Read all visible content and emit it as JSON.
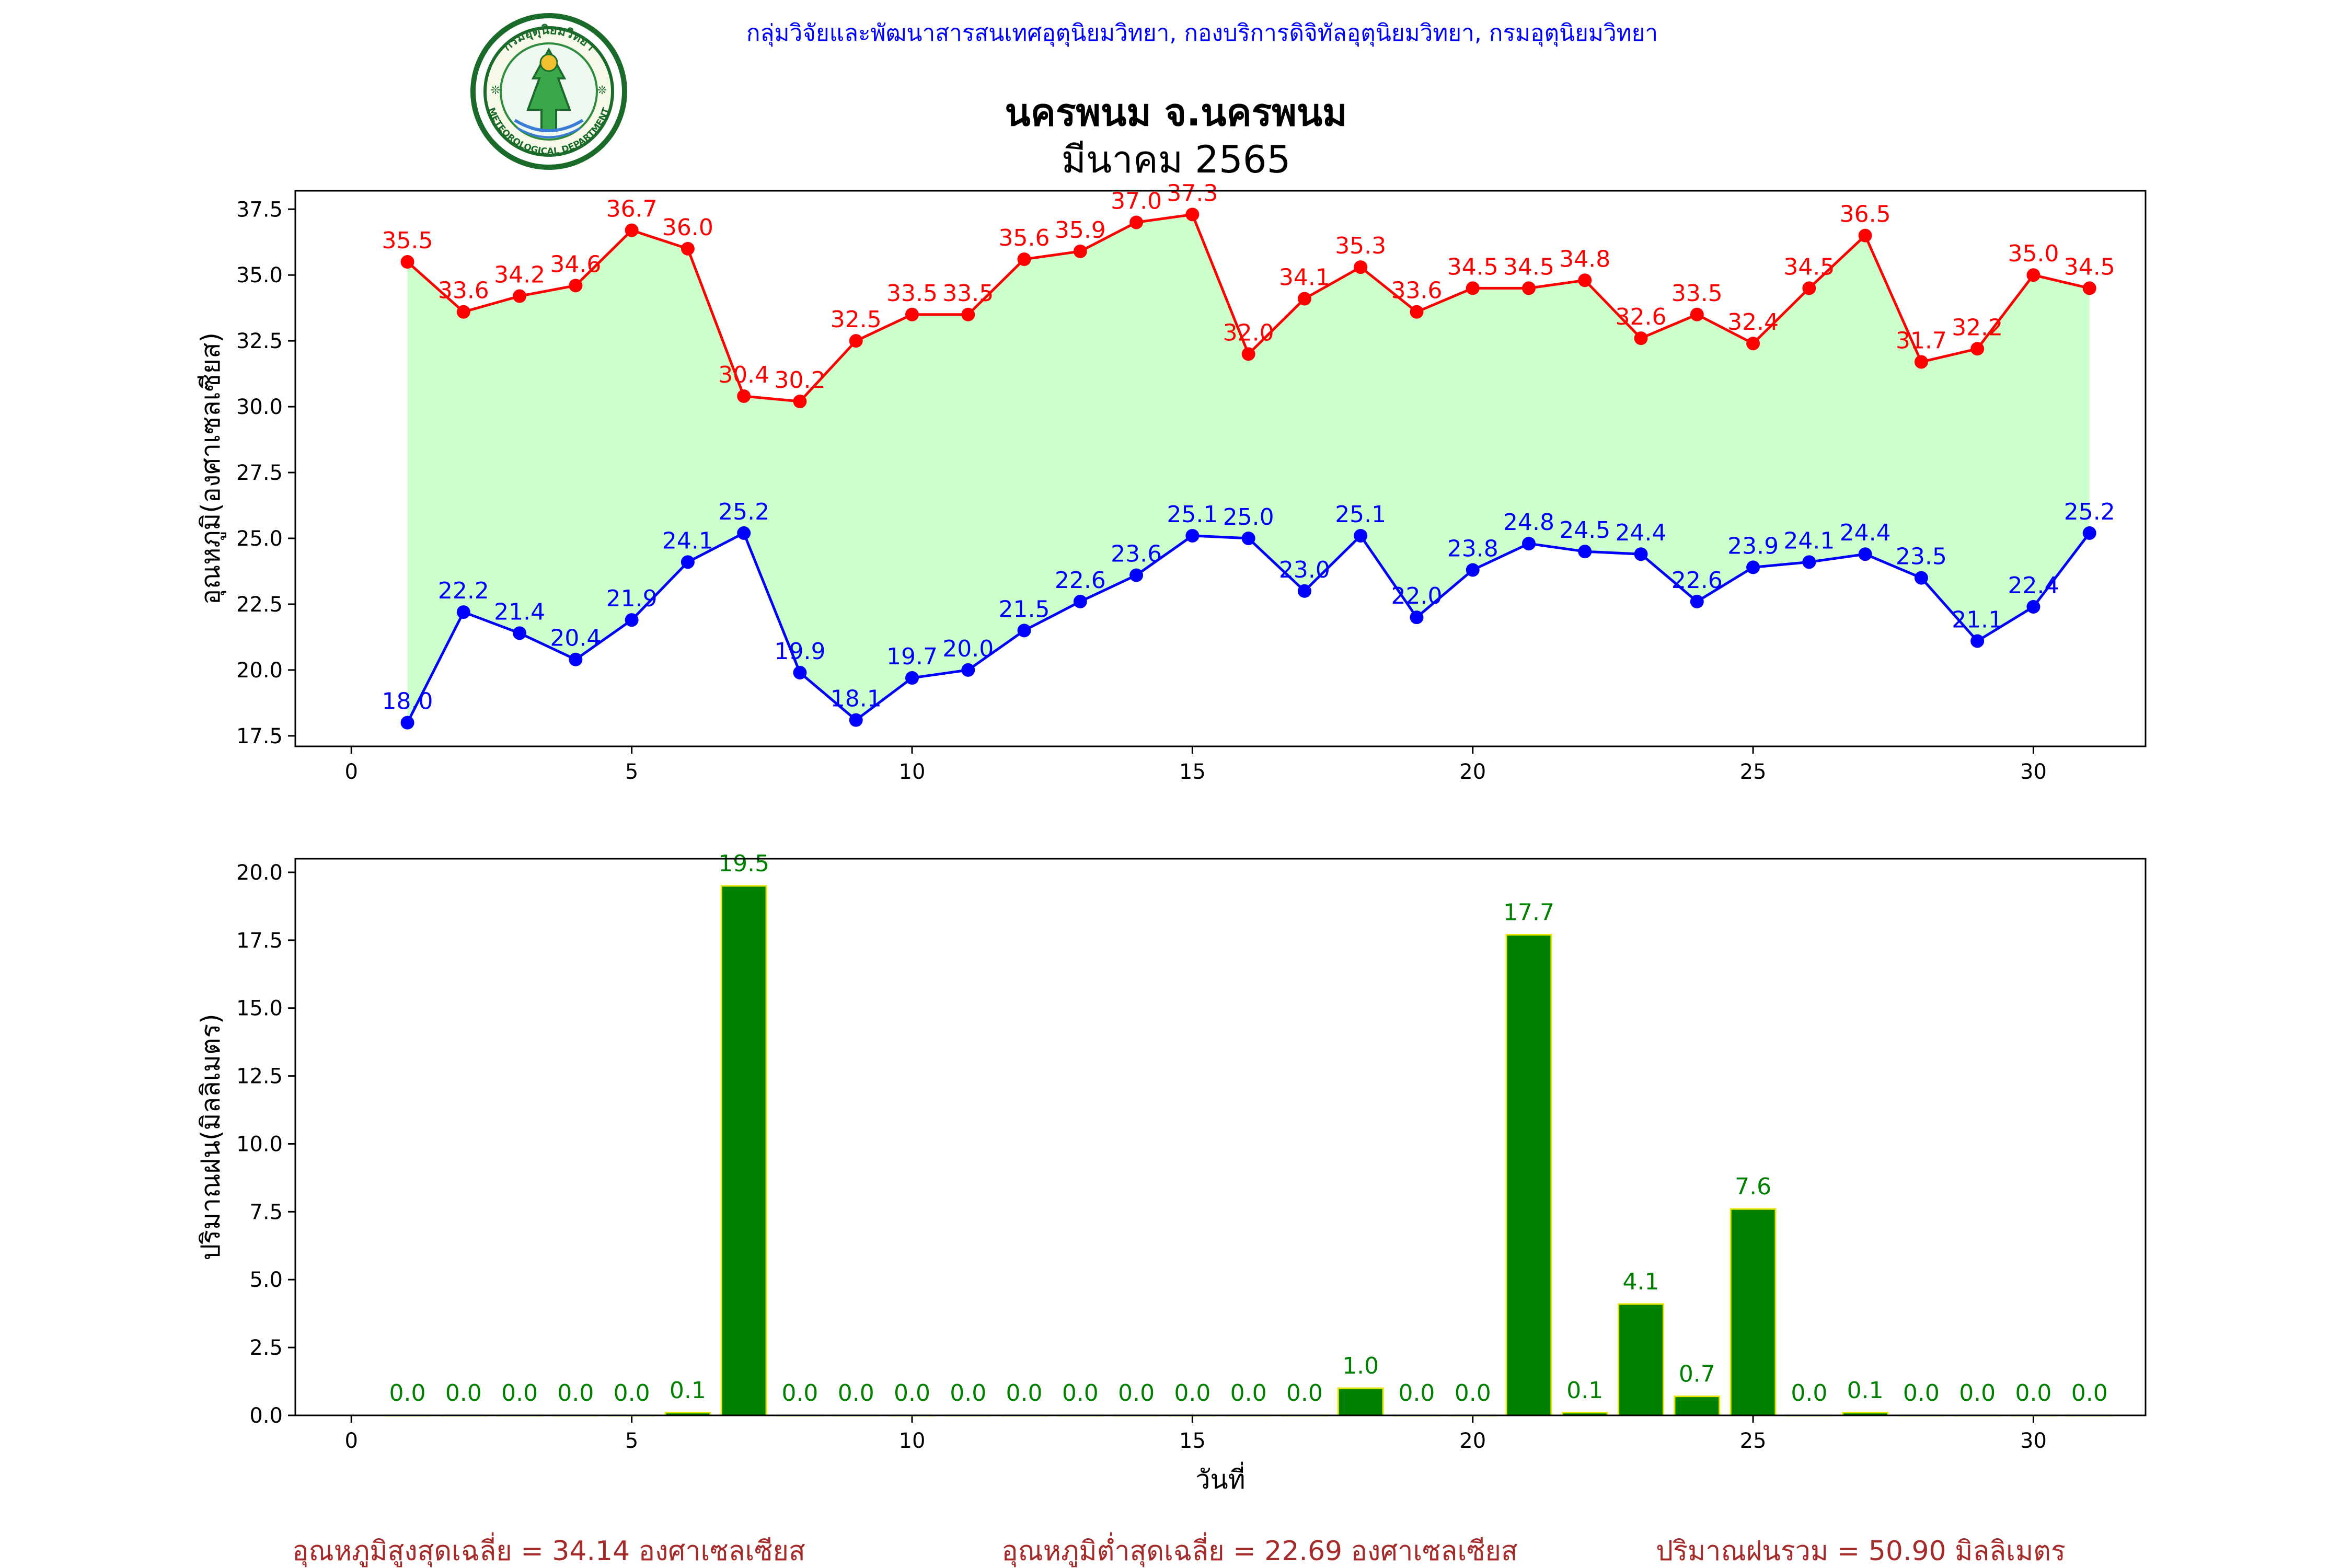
{
  "header": {
    "agency_line": "กลุ่มวิจัยและพัฒนาสารสนเทศอุตุนิยมวิทยา, กองบริการดิจิทัลอุตุนิยมวิทยา, กรมอุตุนิยมวิทยา",
    "station": "นครพนม จ.นครพนม",
    "period": "มีนาคม 2565",
    "logo_text_top": "กรมอุตุนิยมวิทยา",
    "logo_text_bottom": "METEOROLOGICAL DEPARTMENT"
  },
  "colors": {
    "max": "#ff0000",
    "min": "#0000ff",
    "fill": "#ccffcc",
    "bar": "#008000",
    "bar_edge": "#e6e600",
    "bar_label": "#008000",
    "header_blue": "#0000ff",
    "footer": "#a52a2a"
  },
  "chart_data": [
    {
      "type": "line",
      "ylabel": "อุณหภูมิ(องศาเซลเซียส)",
      "xlim": [
        -1,
        32
      ],
      "ylim": [
        17.1,
        38.2
      ],
      "xticks": [
        0,
        5,
        10,
        15,
        20,
        25,
        30
      ],
      "yticks": [
        17.5,
        20.0,
        22.5,
        25.0,
        27.5,
        30.0,
        32.5,
        35.0,
        37.5
      ],
      "x": [
        1,
        2,
        3,
        4,
        5,
        6,
        7,
        8,
        9,
        10,
        11,
        12,
        13,
        14,
        15,
        16,
        17,
        18,
        19,
        20,
        21,
        22,
        23,
        24,
        25,
        26,
        27,
        28,
        29,
        30,
        31
      ],
      "series": [
        {
          "key": "max",
          "values": [
            35.5,
            33.6,
            34.2,
            34.6,
            36.7,
            36.0,
            30.4,
            30.2,
            32.5,
            33.5,
            33.5,
            35.6,
            35.9,
            37.0,
            37.3,
            32.0,
            34.1,
            35.3,
            33.6,
            34.5,
            34.5,
            34.8,
            32.6,
            33.5,
            32.4,
            34.5,
            36.5,
            31.7,
            32.2,
            35.0,
            34.5
          ]
        },
        {
          "key": "min",
          "values": [
            18.0,
            22.2,
            21.4,
            20.4,
            21.9,
            24.1,
            25.2,
            19.9,
            18.1,
            19.7,
            20.0,
            21.5,
            22.6,
            23.6,
            25.1,
            25.0,
            23.0,
            25.1,
            22.0,
            23.8,
            24.8,
            24.5,
            24.4,
            22.6,
            23.9,
            24.1,
            24.4,
            23.5,
            21.1,
            22.4,
            25.2
          ]
        }
      ]
    },
    {
      "type": "bar",
      "ylabel": "ปริมาณฝน(มิลลิเมตร)",
      "xlabel": "วันที่",
      "xlim": [
        -1,
        32
      ],
      "ylim": [
        0,
        20.5
      ],
      "xticks": [
        0,
        5,
        10,
        15,
        20,
        25,
        30
      ],
      "yticks": [
        0.0,
        2.5,
        5.0,
        7.5,
        10.0,
        12.5,
        15.0,
        17.5,
        20.0
      ],
      "x": [
        1,
        2,
        3,
        4,
        5,
        6,
        7,
        8,
        9,
        10,
        11,
        12,
        13,
        14,
        15,
        16,
        17,
        18,
        19,
        20,
        21,
        22,
        23,
        24,
        25,
        26,
        27,
        28,
        29,
        30,
        31
      ],
      "values": [
        0.0,
        0.0,
        0.0,
        0.0,
        0.0,
        0.1,
        19.5,
        0.0,
        0.0,
        0.0,
        0.0,
        0.0,
        0.0,
        0.0,
        0.0,
        0.0,
        0.0,
        1.0,
        0.0,
        0.0,
        17.7,
        0.1,
        4.1,
        0.7,
        7.6,
        0.0,
        0.1,
        0.0,
        0.0,
        0.0,
        0.0
      ]
    }
  ],
  "footer": {
    "avg_max": "อุณหภูมิสูงสุดเฉลี่ย = 34.14 องศาเซลเซียส",
    "avg_min": "อุณหภูมิต่ำสุดเฉลี่ย = 22.69 องศาเซลเซียส",
    "rain_total": "ปริมาณฝนรวม = 50.90 มิลลิเมตร"
  }
}
